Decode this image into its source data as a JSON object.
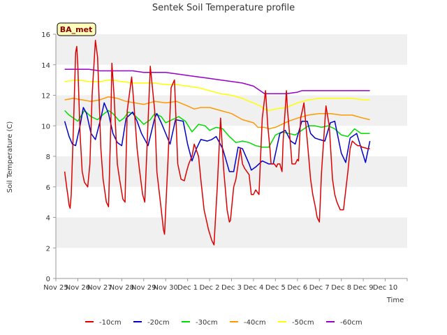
{
  "chart_data": {
    "type": "line",
    "title": "Sentek Soil Temperature profile",
    "xlabel": "Time",
    "ylabel": "Soil Temperature (C)",
    "station_label": "BA_met",
    "xlim": [
      0,
      16
    ],
    "ylim": [
      0,
      16
    ],
    "x_tick_values": [
      0,
      1,
      2,
      3,
      4,
      5,
      6,
      7,
      8,
      9,
      10,
      11,
      12,
      13,
      14,
      15,
      16
    ],
    "x_tick_labels": [
      "Nov 25",
      "Nov 26",
      "Nov 27",
      "Nov 28",
      "Nov 29",
      "Nov 30",
      "Dec 1",
      "Dec 2",
      "Dec 3",
      "Dec 4",
      "Dec 5",
      "Dec 6",
      "Dec 7",
      "Dec 8",
      "Dec 9",
      "Dec 10",
      ""
    ],
    "y_ticks": [
      0,
      2,
      4,
      6,
      8,
      10,
      12,
      14,
      16
    ],
    "grid": "horizontal-bands",
    "legend_position": "bottom",
    "series": [
      {
        "name": "-10cm",
        "color": "#dd0000",
        "x": [
          0.4,
          0.5,
          0.55,
          0.6,
          0.65,
          0.7,
          0.8,
          0.9,
          0.95,
          1.0,
          1.1,
          1.2,
          1.3,
          1.45,
          1.55,
          1.65,
          1.8,
          1.9,
          2.0,
          2.05,
          2.15,
          2.3,
          2.4,
          2.5,
          2.55,
          2.65,
          2.8,
          2.9,
          3.05,
          3.15,
          3.25,
          3.45,
          3.55,
          3.7,
          3.8,
          3.95,
          4.05,
          4.3,
          4.5,
          4.6,
          4.8,
          4.9,
          4.95,
          5.1,
          5.25,
          5.4,
          5.55,
          5.7,
          5.85,
          5.95,
          6.05,
          6.2,
          6.3,
          6.5,
          6.6,
          6.75,
          6.95,
          7.1,
          7.2,
          7.35,
          7.5,
          7.65,
          7.8,
          7.9,
          7.95,
          8.1,
          8.2,
          8.4,
          8.5,
          8.6,
          8.8,
          8.9,
          9.0,
          9.1,
          9.25,
          9.4,
          9.55,
          9.65,
          9.75,
          9.8,
          9.95,
          10.05,
          10.1,
          10.2,
          10.3,
          10.35,
          10.5,
          10.55,
          10.7,
          10.75,
          10.9,
          11.0,
          11.05,
          11.15,
          11.3,
          11.45,
          11.6,
          11.7,
          11.8,
          11.9,
          12.0,
          12.1,
          12.3,
          12.45,
          12.6,
          12.7,
          12.8,
          12.95,
          13.05,
          13.1,
          13.3,
          13.4,
          13.5,
          13.65,
          13.75,
          13.85,
          13.95,
          14.1,
          14.2,
          14.3
        ],
        "values": [
          7.0,
          5.9,
          5.4,
          4.8,
          4.6,
          5.5,
          10.0,
          14.8,
          15.2,
          14.0,
          9.5,
          7.0,
          6.3,
          6.0,
          7.5,
          12.0,
          15.6,
          14.5,
          10.5,
          8.5,
          6.5,
          5.0,
          4.7,
          10.0,
          14.1,
          12.0,
          7.5,
          6.5,
          5.2,
          5.0,
          11.0,
          13.2,
          11.5,
          8.5,
          7.2,
          5.5,
          5.0,
          13.9,
          11.0,
          7.0,
          4.5,
          3.2,
          2.9,
          7.5,
          12.5,
          13.0,
          7.5,
          6.5,
          6.4,
          7.0,
          7.5,
          8.0,
          8.8,
          8.0,
          6.5,
          4.5,
          3.2,
          2.5,
          2.2,
          6.0,
          10.5,
          7.0,
          4.5,
          3.7,
          3.8,
          6.0,
          6.5,
          8.5,
          7.5,
          7.2,
          6.8,
          5.5,
          5.5,
          5.8,
          5.5,
          10.5,
          12.3,
          10.0,
          8.5,
          7.5,
          7.5,
          7.3,
          7.5,
          7.5,
          7.0,
          9.0,
          12.3,
          11.0,
          8.5,
          7.5,
          7.5,
          7.8,
          7.7,
          10.5,
          11.5,
          9.0,
          6.5,
          5.5,
          4.8,
          4.0,
          3.7,
          7.0,
          11.3,
          10.0,
          6.5,
          5.5,
          5.0,
          4.5,
          4.5,
          4.5,
          7.0,
          8.5,
          9.0,
          8.8,
          8.7,
          8.7,
          8.6,
          8.55,
          8.5,
          8.5
        ]
      },
      {
        "name": "-20cm",
        "color": "#0000cc",
        "x": [
          0.4,
          0.6,
          0.75,
          0.9,
          1.1,
          1.25,
          1.4,
          1.6,
          1.8,
          2.05,
          2.2,
          2.4,
          2.6,
          2.8,
          3.0,
          3.2,
          3.5,
          3.7,
          3.9,
          4.2,
          4.5,
          4.6,
          4.8,
          5.2,
          5.45,
          5.8,
          6.0,
          6.2,
          6.4,
          6.6,
          6.9,
          7.1,
          7.3,
          7.6,
          7.9,
          8.1,
          8.3,
          8.5,
          8.8,
          8.9,
          9.1,
          9.4,
          9.7,
          9.9,
          10.2,
          10.45,
          10.7,
          10.9,
          11.2,
          11.45,
          11.6,
          11.8,
          12.0,
          12.25,
          12.5,
          12.7,
          13.0,
          13.2,
          13.4,
          13.7,
          14.1,
          14.3
        ],
        "values": [
          10.3,
          9.3,
          8.8,
          8.7,
          10.0,
          11.2,
          10.8,
          9.5,
          9.1,
          10.5,
          11.5,
          10.8,
          9.5,
          8.9,
          8.7,
          10.5,
          10.9,
          10.3,
          9.5,
          8.7,
          10.5,
          10.8,
          10.2,
          8.8,
          10.4,
          10.3,
          8.8,
          7.7,
          8.5,
          9.1,
          9.0,
          9.1,
          9.3,
          8.5,
          7.0,
          7.0,
          8.6,
          8.5,
          7.5,
          7.1,
          7.3,
          7.7,
          7.5,
          7.5,
          9.5,
          9.7,
          9.0,
          8.8,
          10.3,
          10.3,
          9.5,
          9.2,
          9.1,
          9.0,
          10.2,
          10.3,
          8.2,
          7.6,
          9.2,
          9.5,
          7.6,
          9.0
        ]
      },
      {
        "name": "-30cm",
        "color": "#00dd00",
        "x": [
          0.4,
          0.6,
          0.8,
          1.0,
          1.3,
          1.6,
          1.9,
          2.2,
          2.4,
          2.6,
          2.9,
          3.1,
          3.3,
          3.5,
          3.8,
          4.0,
          4.3,
          4.5,
          4.8,
          5.0,
          5.3,
          5.6,
          5.9,
          6.2,
          6.5,
          6.8,
          7.0,
          7.3,
          7.6,
          7.9,
          8.2,
          8.5,
          8.8,
          9.1,
          9.4,
          9.7,
          10.0,
          10.3,
          10.6,
          10.9,
          11.2,
          11.5,
          11.8,
          12.1,
          12.4,
          12.7,
          13.0,
          13.3,
          13.6,
          13.9,
          14.3
        ],
        "values": [
          11.0,
          10.7,
          10.5,
          10.3,
          11.0,
          10.6,
          10.4,
          10.8,
          11.0,
          10.8,
          10.3,
          10.5,
          10.9,
          10.8,
          10.4,
          10.1,
          10.4,
          10.8,
          10.6,
          10.2,
          10.4,
          10.6,
          10.3,
          9.6,
          10.1,
          10.0,
          9.7,
          9.9,
          9.8,
          9.3,
          8.9,
          9.0,
          8.9,
          8.7,
          8.6,
          8.6,
          9.4,
          9.6,
          9.5,
          9.4,
          9.7,
          10.0,
          10.0,
          9.9,
          10.0,
          9.8,
          9.4,
          9.3,
          9.8,
          9.5,
          9.5
        ]
      },
      {
        "name": "-40cm",
        "color": "#ff9900",
        "x": [
          0.4,
          0.8,
          1.2,
          1.6,
          2.0,
          2.4,
          2.8,
          3.2,
          3.6,
          4.0,
          4.5,
          5.0,
          5.5,
          6.0,
          6.3,
          6.6,
          7.0,
          7.5,
          8.0,
          8.5,
          9.0,
          9.2,
          9.5,
          9.7,
          10.0,
          10.3,
          10.6,
          11.0,
          11.5,
          12.0,
          12.5,
          13.0,
          13.5,
          14.0,
          14.3
        ],
        "values": [
          11.7,
          11.8,
          11.7,
          11.6,
          11.7,
          11.9,
          11.8,
          11.6,
          11.5,
          11.4,
          11.6,
          11.5,
          11.6,
          11.3,
          11.1,
          11.2,
          11.2,
          11.0,
          10.8,
          10.4,
          10.2,
          9.9,
          9.9,
          9.8,
          9.9,
          10.1,
          10.3,
          10.5,
          10.7,
          10.8,
          10.8,
          10.7,
          10.7,
          10.5,
          10.4
        ]
      },
      {
        "name": "-50cm",
        "color": "#ffff00",
        "x": [
          0.4,
          1.0,
          1.5,
          2.0,
          2.5,
          3.0,
          3.5,
          4.0,
          4.5,
          5.0,
          5.5,
          6.0,
          6.5,
          7.0,
          7.5,
          8.0,
          8.5,
          8.8,
          9.0,
          9.3,
          9.5,
          9.7,
          10.0,
          10.5,
          11.0,
          11.5,
          12.0,
          12.5,
          13.0,
          13.5,
          14.0,
          14.3
        ],
        "values": [
          12.9,
          13.0,
          12.9,
          12.9,
          13.0,
          12.9,
          12.8,
          12.8,
          12.8,
          12.7,
          12.7,
          12.6,
          12.5,
          12.3,
          12.1,
          12.0,
          11.8,
          11.6,
          11.5,
          11.3,
          11.1,
          11.0,
          11.1,
          11.2,
          11.5,
          11.7,
          11.8,
          11.8,
          11.8,
          11.8,
          11.7,
          11.7
        ]
      },
      {
        "name": "-60cm",
        "color": "#9900cc",
        "x": [
          0.4,
          1.0,
          1.5,
          2.0,
          2.5,
          3.0,
          3.5,
          4.0,
          4.5,
          5.0,
          5.5,
          6.0,
          6.5,
          7.0,
          7.5,
          8.0,
          8.5,
          9.0,
          9.3,
          9.5,
          10.0,
          10.5,
          11.0,
          11.2,
          11.5,
          12.0,
          12.5,
          13.0,
          13.5,
          14.0,
          14.3
        ],
        "values": [
          13.7,
          13.7,
          13.7,
          13.6,
          13.6,
          13.6,
          13.6,
          13.5,
          13.5,
          13.5,
          13.4,
          13.3,
          13.2,
          13.1,
          13.0,
          12.9,
          12.8,
          12.6,
          12.3,
          12.1,
          12.1,
          12.1,
          12.2,
          12.3,
          12.3,
          12.3,
          12.3,
          12.3,
          12.3,
          12.3,
          12.3
        ]
      }
    ]
  }
}
